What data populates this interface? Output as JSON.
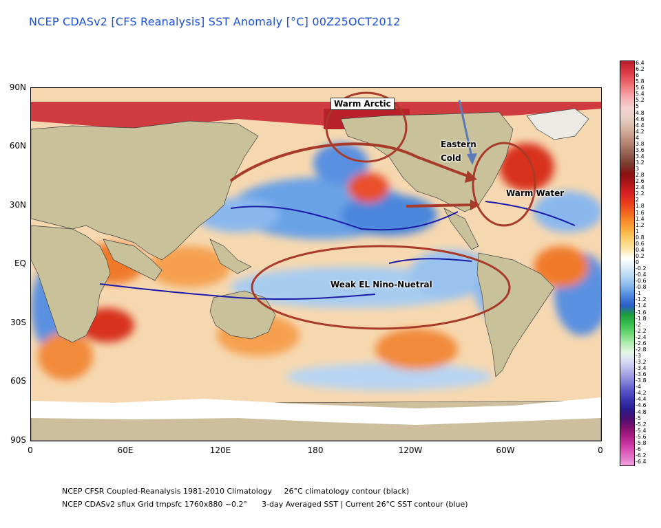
{
  "title": "NCEP CDASv2 [CFS Reanalysis] SST Anomaly [°C] 00Z25OCT2012",
  "lat_labels": [
    "90N",
    "60N",
    "30N",
    "EQ",
    "30S",
    "60S",
    "90S"
  ],
  "lon_labels": [
    "0",
    "60E",
    "120E",
    "180",
    "120W",
    "60W",
    "0"
  ],
  "colorbar": {
    "labels": [
      "6.4",
      "6.2",
      "6",
      "5.8",
      "5.6",
      "5.4",
      "5.2",
      "5",
      "4.8",
      "4.6",
      "4.4",
      "4.2",
      "4",
      "3.8",
      "3.6",
      "3.4",
      "3.2",
      "3",
      "2.8",
      "2.6",
      "2.4",
      "2.2",
      "2",
      "1.8",
      "1.6",
      "1.4",
      "1.2",
      "1",
      "0.8",
      "0.6",
      "0.4",
      "0.2",
      "0",
      "-0.2",
      "-0.4",
      "-0.6",
      "-0.8",
      "-1",
      "-1.2",
      "-1.4",
      "-1.6",
      "-1.8",
      "-2",
      "-2.2",
      "-2.4",
      "-2.6",
      "-2.8",
      "-3",
      "-3.2",
      "-3.4",
      "-3.6",
      "-3.8",
      "-4",
      "-4.2",
      "-4.4",
      "-4.6",
      "-4.8",
      "-5",
      "-5.2",
      "-5.4",
      "-5.6",
      "-5.8",
      "-6",
      "-6.2",
      "-6.4"
    ],
    "colors_top_to_bottom": [
      "#b8202a",
      "#d8343c",
      "#e85a62",
      "#f2868c",
      "#f8b2b4",
      "#f4d2d0",
      "#e8cfc4",
      "#d9b8a8",
      "#c49a88",
      "#ad7c6a",
      "#8e5a4c",
      "#7a3a2e",
      "#8a1010",
      "#b01818",
      "#d42020",
      "#e83a1e",
      "#f2601e",
      "#f78a2a",
      "#fbb040",
      "#fcd070",
      "#fde6a8",
      "#ffffff",
      "#d8eaf8",
      "#b0d4f2",
      "#80b4ea",
      "#4a86dc",
      "#2a5cc6",
      "#1ca03a",
      "#38c050",
      "#70d878",
      "#b0ecb0",
      "#e6f6e6",
      "#d8d8f4",
      "#b0b0e8",
      "#8a88dc",
      "#5a58c8",
      "#3a36b0",
      "#2a1e90",
      "#4a1070",
      "#80106e",
      "#b0208a",
      "#d040a8",
      "#e070c4",
      "#f0a0dc"
    ]
  },
  "annotations": {
    "warm_arctic": "Warm Arctic",
    "eastern_cold": "Eastern\nCold",
    "warm_water": "Warm Water",
    "weak_el_nino": "Weak EL Nino-Nuetral"
  },
  "footer": {
    "line1": "NCEP CFSR Coupled-Reanalysis 1981-2010 Climatology     26°C climatology contour (black)",
    "line2": "NCEP CDASv2 sflux Grid tmpsfc 1760x880 ~0.2°      3-day Averaged SST | Current 26°C SST contour (blue)"
  }
}
